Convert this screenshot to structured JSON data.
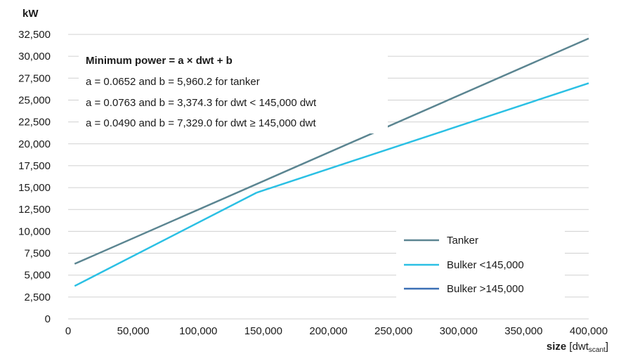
{
  "chart_data": {
    "type": "line",
    "ylabel": "kW",
    "xlabel": {
      "bold": "size",
      "open": " [dwt",
      "sub": "scant",
      "close": "]"
    },
    "xlim": [
      0,
      400000
    ],
    "ylim": [
      0,
      32500
    ],
    "x_ticks": [
      0,
      50000,
      100000,
      150000,
      200000,
      250000,
      300000,
      350000,
      400000
    ],
    "x_tick_labels": [
      "0",
      "50,000",
      "100,000",
      "150,000",
      "200,000",
      "250,000",
      "300,000",
      "350,000",
      "400,000"
    ],
    "y_ticks": [
      0,
      2500,
      5000,
      7500,
      10000,
      12500,
      15000,
      17500,
      20000,
      22500,
      25000,
      27500,
      30000,
      32500
    ],
    "y_tick_labels": [
      "0",
      "2,500",
      "5,000",
      "7,500",
      "10,000",
      "12,500",
      "15,000",
      "17,500",
      "20,000",
      "22,500",
      "25,000",
      "27,500",
      "30,000",
      "32,500"
    ],
    "grid": "horizontal",
    "legend_position": "bottom-right",
    "annotation": {
      "title": "Minimum power = a × dwt + b",
      "lines": [
        "a = 0.0652 and b = 5,960.2 for tanker",
        "a = 0.0763 and b = 3,374.3 for dwt < 145,000 dwt",
        "a = 0.0490 and b = 7,329.0 for dwt ≥ 145,000 dwt"
      ]
    },
    "series": [
      {
        "name": "Tanker",
        "color": "#5b8591",
        "points": [
          [
            5000,
            6286
          ],
          [
            400000,
            32040
          ]
        ]
      },
      {
        "name": "Bulker <145,000",
        "color": "#2bc0e4",
        "points": [
          [
            5000,
            3756
          ],
          [
            145000,
            14438
          ]
        ]
      },
      {
        "name": "Bulker >145,000",
        "color": "#3b6fb5",
        "legend_only": true,
        "points": []
      },
      {
        "color": "#2bc0e4",
        "points": [
          [
            145000,
            14434
          ],
          [
            400000,
            26929
          ]
        ]
      }
    ]
  }
}
